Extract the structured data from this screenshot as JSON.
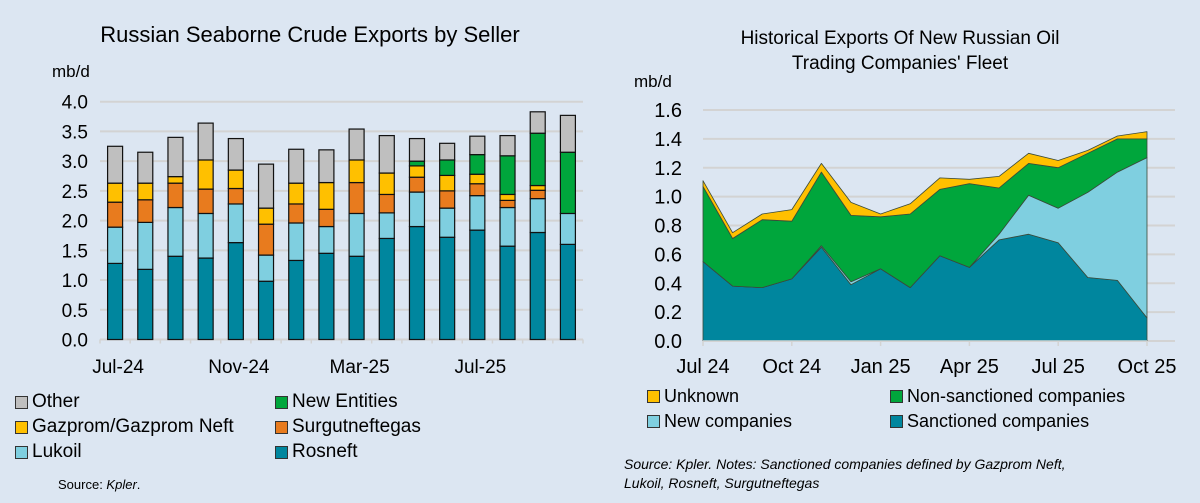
{
  "chart_data": [
    {
      "type": "bar",
      "stacked": true,
      "title": "Russian Seaborne Crude Exports by Seller",
      "ylabel": "mb/d",
      "ylim": [
        0,
        4.0
      ],
      "yticks": [
        "0.0",
        "0.5",
        "1.0",
        "1.5",
        "2.0",
        "2.5",
        "3.0",
        "3.5",
        "4.0"
      ],
      "yticks_values": [
        0,
        0.5,
        1.0,
        1.5,
        2.0,
        2.5,
        3.0,
        3.5,
        4.0
      ],
      "categories": [
        "Jul-24",
        "Aug-24",
        "Sep-24",
        "Oct-24",
        "Nov-24",
        "Dec-24",
        "Jan-25",
        "Feb-25",
        "Mar-25",
        "Apr-25",
        "May-25",
        "Jun-25",
        "Jul-25",
        "Aug-25",
        "Sep-25",
        "Oct-25"
      ],
      "xtick_labels": [
        {
          "index": 0,
          "label": "Jul-24"
        },
        {
          "index": 4,
          "label": "Nov-24"
        },
        {
          "index": 8,
          "label": "Mar-25"
        },
        {
          "index": 12,
          "label": "Jul-25"
        }
      ],
      "grid": true,
      "legend_placement": "bottom",
      "series": [
        {
          "name": "Rosneft",
          "color": "#00869e",
          "values": [
            1.28,
            1.18,
            1.4,
            1.37,
            1.63,
            0.98,
            1.33,
            1.45,
            1.4,
            1.7,
            1.9,
            1.72,
            1.84,
            1.57,
            1.8,
            1.6
          ]
        },
        {
          "name": "Lukoil",
          "color": "#7fcfe0",
          "values": [
            0.61,
            0.79,
            0.82,
            0.75,
            0.65,
            0.44,
            0.63,
            0.45,
            0.72,
            0.43,
            0.58,
            0.49,
            0.58,
            0.65,
            0.57,
            0.52
          ]
        },
        {
          "name": "Surgutneftegas",
          "color": "#e87b1e",
          "values": [
            0.42,
            0.38,
            0.41,
            0.41,
            0.26,
            0.52,
            0.32,
            0.29,
            0.52,
            0.31,
            0.25,
            0.29,
            0.2,
            0.12,
            0.14,
            0.0
          ]
        },
        {
          "name": "Gazprom/Gazprom Neft",
          "color": "#ffc000",
          "values": [
            0.32,
            0.28,
            0.11,
            0.49,
            0.31,
            0.27,
            0.35,
            0.45,
            0.38,
            0.36,
            0.19,
            0.26,
            0.16,
            0.1,
            0.08,
            0.0
          ]
        },
        {
          "name": "New Entities",
          "color": "#00a63c",
          "values": [
            0,
            0,
            0,
            0,
            0,
            0,
            0,
            0,
            0,
            0,
            0.08,
            0.26,
            0.33,
            0.65,
            0.88,
            1.03
          ]
        },
        {
          "name": "Other",
          "color": "#bfbfbf",
          "values": [
            0.62,
            0.52,
            0.66,
            0.62,
            0.53,
            0.74,
            0.57,
            0.55,
            0.52,
            0.63,
            0.38,
            0.28,
            0.31,
            0.34,
            0.36,
            0.62
          ]
        }
      ],
      "legend_order": [
        "Other",
        "New Entities",
        "Gazprom/Gazprom Neft",
        "Surgutneftegas",
        "Lukoil",
        "Rosneft"
      ],
      "source_prefix": "Source: ",
      "source_italic": "Kpler",
      "source_suffix": "."
    },
    {
      "type": "area",
      "stacked": true,
      "title_lines": [
        "Historical Exports Of New Russian Oil",
        "Trading Companies' Fleet"
      ],
      "ylabel": "mb/d",
      "ylim": [
        0,
        1.6
      ],
      "yticks": [
        "0.0",
        "0.2",
        "0.4",
        "0.6",
        "0.8",
        "1.0",
        "1.2",
        "1.4",
        "1.6"
      ],
      "yticks_values": [
        0,
        0.2,
        0.4,
        0.6,
        0.8,
        1.0,
        1.2,
        1.4,
        1.6
      ],
      "x": [
        "Jul 24",
        "Aug 24",
        "Sep 24",
        "Oct 24",
        "Nov 24",
        "Dec 24",
        "Jan 25",
        "Feb 25",
        "Mar 25",
        "Apr 25",
        "May 25",
        "Jun 25",
        "Jul 25",
        "Aug 25",
        "Sep 25",
        "Oct 25"
      ],
      "xtick_labels": [
        {
          "index": 0,
          "label": "Jul 24"
        },
        {
          "index": 3,
          "label": "Oct 24"
        },
        {
          "index": 6,
          "label": "Jan 25"
        },
        {
          "index": 9,
          "label": "Apr 25"
        },
        {
          "index": 12,
          "label": "Jul 25"
        },
        {
          "index": 15,
          "label": "Oct 25"
        }
      ],
      "grid": true,
      "legend_placement": "bottom",
      "series": [
        {
          "name": "Sanctioned companies",
          "color": "#00869e",
          "values": [
            0.55,
            0.38,
            0.37,
            0.43,
            0.65,
            0.39,
            0.5,
            0.37,
            0.59,
            0.51,
            0.7,
            0.74,
            0.68,
            0.44,
            0.42,
            0.16
          ]
        },
        {
          "name": "New companies",
          "color": "#7fcfe0",
          "values": [
            0,
            0,
            0,
            0,
            0.01,
            0.02,
            0,
            0,
            0,
            0,
            0.04,
            0.27,
            0.24,
            0.59,
            0.75,
            1.11
          ]
        },
        {
          "name": "Non-sanctioned companies",
          "color": "#00a63c",
          "values": [
            0.52,
            0.33,
            0.47,
            0.4,
            0.51,
            0.46,
            0.36,
            0.51,
            0.46,
            0.58,
            0.32,
            0.22,
            0.28,
            0.27,
            0.23,
            0.13
          ]
        },
        {
          "name": "Unknown",
          "color": "#ffc000",
          "values": [
            0.04,
            0.04,
            0.04,
            0.08,
            0.06,
            0.09,
            0.02,
            0.07,
            0.08,
            0.03,
            0.08,
            0.07,
            0.05,
            0.02,
            0.02,
            0.05
          ]
        }
      ],
      "legend_order": [
        "Unknown",
        "Non-sanctioned companies",
        "New companies",
        "Sanctioned companies"
      ],
      "source_text": "Source: Kpler. Notes: Sanctioned companies defined by Gazprom Neft,",
      "source_text_2": "Lukoil, Rosneft, Surgutneftegas"
    }
  ]
}
